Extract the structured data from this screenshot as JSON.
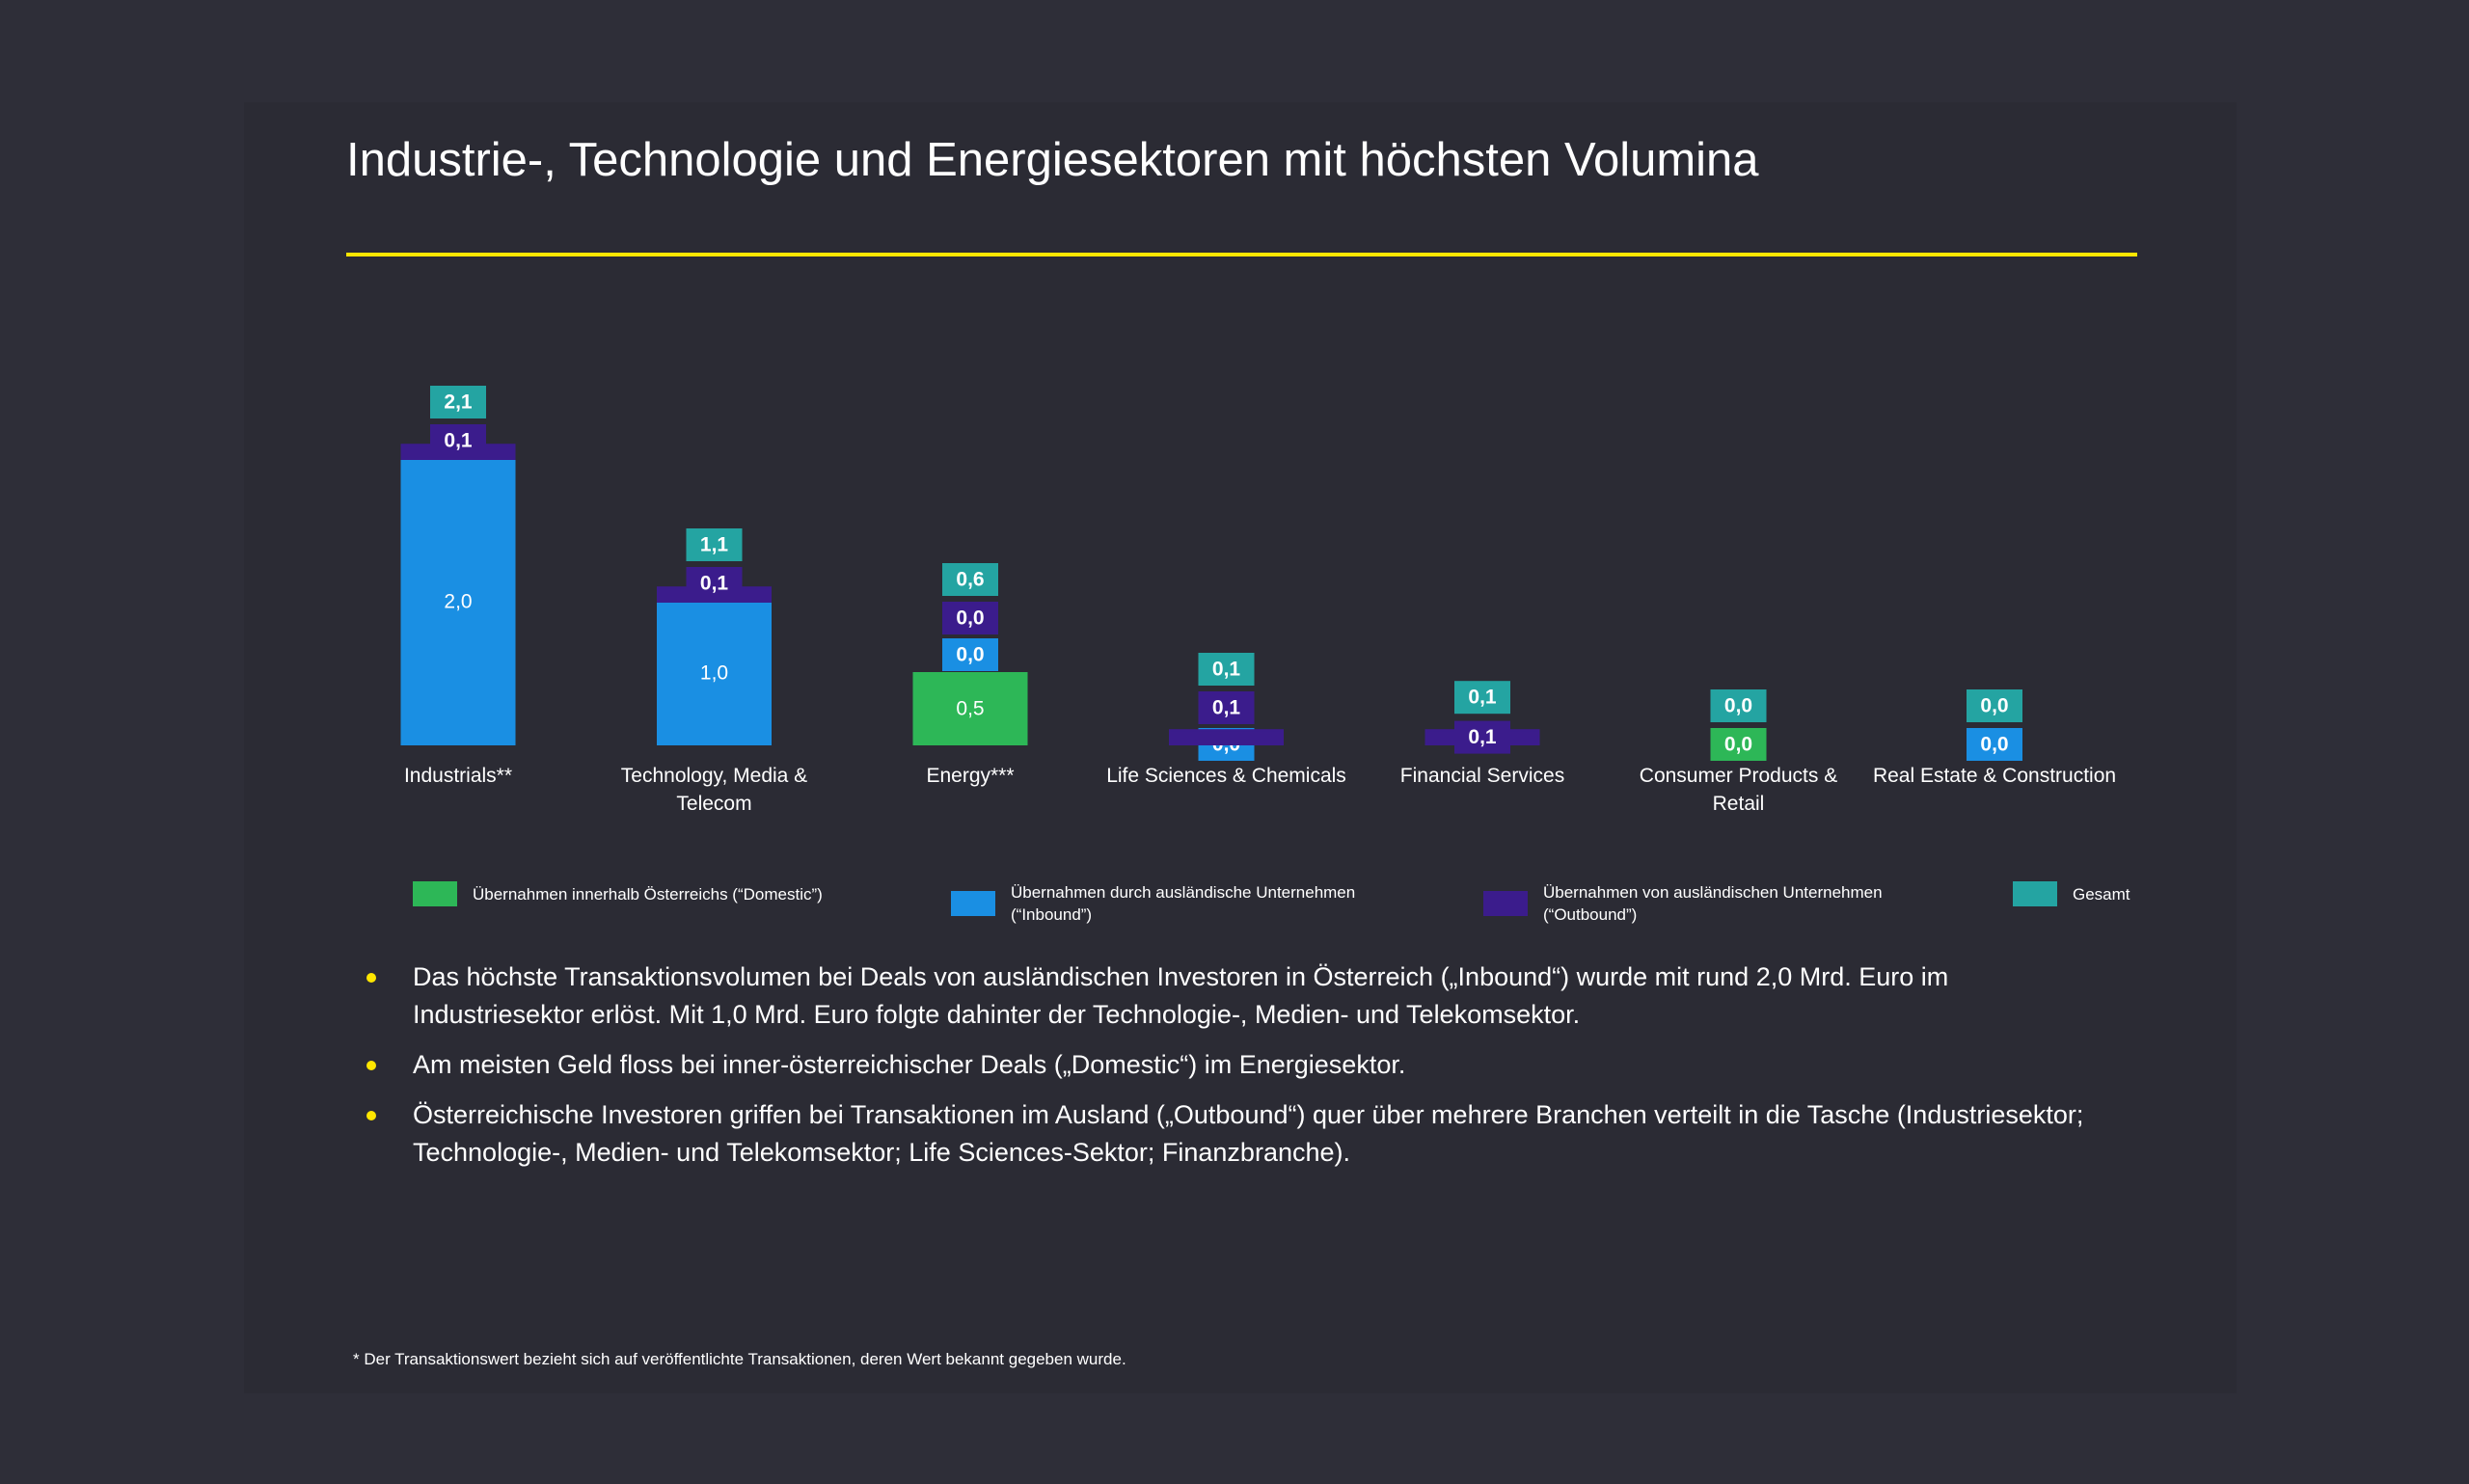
{
  "title": "Industrie-, Technologie und Energiesektoren mit höchsten Volumina",
  "chart_data": {
    "type": "bar",
    "stacked": true,
    "categories": [
      "Industrials**",
      "Technology, Media & Telecom",
      "Energy***",
      "Life Sciences & Chemicals",
      "Financial Services",
      "Consumer Products & Retail",
      "Real Estate & Construction"
    ],
    "series": [
      {
        "name": "Übernahmen innerhalb Österreichs (“Domestic”)",
        "color": "#2db757",
        "values": [
          null,
          null,
          0.5,
          null,
          null,
          0.0,
          null
        ],
        "value_labels": [
          null,
          null,
          "0,5",
          null,
          null,
          "0,0",
          null
        ]
      },
      {
        "name": "Übernahmen durch ausländische Unternehmen (“Inbound”)",
        "color": "#1a8fe3",
        "values": [
          2.0,
          1.0,
          0.0,
          0.0,
          null,
          null,
          0.0
        ],
        "value_labels": [
          "2,0",
          "1,0",
          "0,0",
          "0,0",
          null,
          null,
          "0,0"
        ]
      },
      {
        "name": "Übernahmen von ausländischen Unternehmen (“Outbound”)",
        "color": "#3b1c8c",
        "values": [
          0.1,
          0.1,
          0.0,
          0.1,
          0.1,
          null,
          null
        ],
        "value_labels": [
          "0,1",
          "0,1",
          "0,0",
          "0,1",
          "0,1",
          null,
          null
        ]
      },
      {
        "name": "Gesamt",
        "color": "#24a4a2",
        "total": true,
        "values": [
          2.1,
          1.1,
          0.6,
          0.1,
          0.1,
          0.0,
          0.0
        ],
        "value_labels": [
          "2,1",
          "1,1",
          "0,6",
          "0,1",
          "0,1",
          "0,0",
          "0,0"
        ]
      }
    ]
  },
  "bullets": [
    "Das höchste Transaktionsvolumen bei Deals von ausländischen Investoren in Österreich („Inbound“) wurde mit rund 2,0 Mrd. Euro im Industriesektor erlöst. Mit 1,0 Mrd. Euro folgte dahinter der Technologie-, Medien- und Telekomsektor.",
    "Am meisten Geld floss bei inner-österreichischer Deals („Domestic“) im Energiesektor.",
    "Österreichische Investoren griffen bei Transaktionen im Ausland („Outbound“) quer über mehrere Branchen verteilt in die Tasche (Industriesektor; Technologie-, Medien- und Telekomsektor; Life Sciences-Sektor; Finanzbranche)."
  ],
  "footnote": "* Der Transaktionswert bezieht sich auf veröffentlichte Transaktionen, deren Wert bekannt gegeben wurde."
}
